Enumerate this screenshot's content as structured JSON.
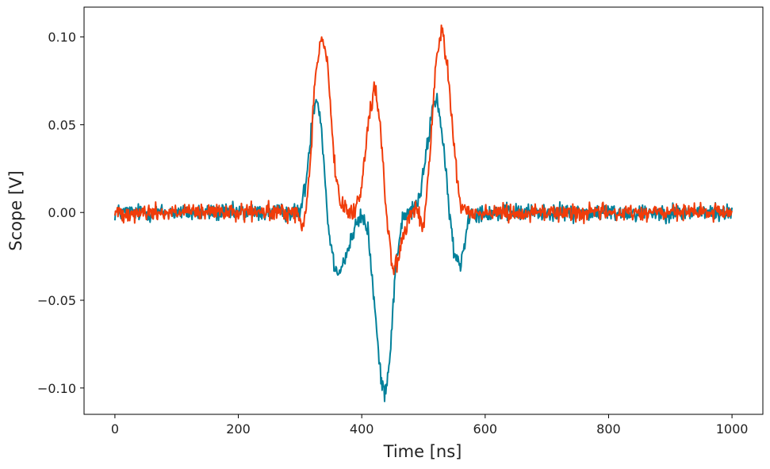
{
  "chart_data": {
    "type": "line",
    "title": "",
    "xlabel": "Time [ns]",
    "ylabel": "Scope [V]",
    "xlim": [
      -50,
      1050
    ],
    "ylim": [
      -0.115,
      0.117
    ],
    "grid": false,
    "legend": "none",
    "x_ticks": [
      {
        "value": 0,
        "label": "0"
      },
      {
        "value": 200,
        "label": "200"
      },
      {
        "value": 400,
        "label": "400"
      },
      {
        "value": 600,
        "label": "600"
      },
      {
        "value": 800,
        "label": "800"
      },
      {
        "value": 1000,
        "label": "1000"
      }
    ],
    "y_ticks": [
      {
        "value": -0.1,
        "label": "−0.10"
      },
      {
        "value": -0.05,
        "label": "−0.05"
      },
      {
        "value": 0.0,
        "label": "0.00"
      },
      {
        "value": 0.05,
        "label": "0.05"
      },
      {
        "value": 0.1,
        "label": "0.10"
      }
    ],
    "series": [
      {
        "color": "#00809a",
        "noise": 0.0035,
        "x": [
          0,
          300,
          310,
          320,
          327,
          335,
          345,
          355,
          365,
          375,
          390,
          400,
          410,
          420,
          430,
          437,
          445,
          455,
          465,
          475,
          485,
          495,
          505,
          515,
          522,
          530,
          540,
          550,
          560,
          575,
          1000
        ],
        "y": [
          0.0,
          0.0,
          0.018,
          0.055,
          0.067,
          0.048,
          -0.005,
          -0.03,
          -0.033,
          -0.024,
          -0.008,
          -0.002,
          -0.01,
          -0.05,
          -0.092,
          -0.103,
          -0.085,
          -0.03,
          -0.005,
          0.0,
          0.002,
          0.01,
          0.035,
          0.06,
          0.066,
          0.045,
          0.008,
          -0.025,
          -0.03,
          0.0,
          0.0
        ]
      },
      {
        "color": "#f03c0a",
        "noise": 0.0035,
        "x": [
          0,
          295,
          305,
          315,
          325,
          335,
          345,
          355,
          365,
          375,
          390,
          400,
          410,
          420,
          430,
          440,
          450,
          460,
          470,
          480,
          490,
          500,
          510,
          520,
          530,
          540,
          550,
          560,
          570,
          1000
        ],
        "y": [
          0.0,
          0.0,
          -0.01,
          0.02,
          0.08,
          0.101,
          0.085,
          0.03,
          0.005,
          0.0,
          0.001,
          0.015,
          0.05,
          0.072,
          0.05,
          0.0,
          -0.033,
          -0.025,
          -0.01,
          0.0,
          0.002,
          -0.01,
          0.03,
          0.085,
          0.104,
          0.08,
          0.035,
          0.005,
          0.0,
          0.0
        ]
      }
    ]
  }
}
